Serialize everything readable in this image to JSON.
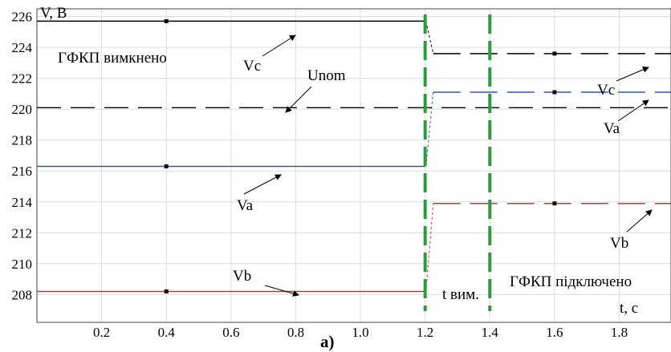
{
  "chart_data": {
    "type": "line",
    "caption": "а)",
    "xlabel": "t, c",
    "ylabel": "V, B",
    "xlim": [
      0,
      1.96
    ],
    "ylim": [
      206.2,
      226.5
    ],
    "xticks": [
      0.2,
      0.4,
      0.6,
      0.8,
      1.0,
      1.2,
      1.4,
      1.6,
      1.8
    ],
    "xtick_labels": [
      "0.2",
      "0.4",
      "0.6",
      "0.8",
      "1.0",
      "1.2",
      "1.4",
      "1.6",
      "1.8"
    ],
    "yticks": [
      208,
      210,
      212,
      214,
      216,
      218,
      220,
      222,
      224,
      226
    ],
    "ytick_labels": [
      "208",
      "210",
      "212",
      "214",
      "216",
      "218",
      "220",
      "222",
      "224",
      "226"
    ],
    "grid": true,
    "series": [
      {
        "name": "Vc",
        "color": "#000000",
        "style": "solid-then-dashed",
        "points": [
          [
            0,
            225.7
          ],
          [
            1.2,
            225.7
          ],
          [
            1.225,
            223.6
          ],
          [
            1.96,
            223.6
          ]
        ]
      },
      {
        "name": "Va",
        "color": "#3355bb",
        "style": "solid-then-dashed",
        "points": [
          [
            0,
            216.3
          ],
          [
            1.2,
            216.3
          ],
          [
            1.225,
            221.1
          ],
          [
            1.96,
            221.1
          ]
        ]
      },
      {
        "name": "Vb",
        "color": "#cc3333",
        "style": "solid-then-dashed",
        "points": [
          [
            0,
            208.2
          ],
          [
            1.2,
            208.2
          ],
          [
            1.225,
            213.9
          ],
          [
            1.96,
            213.9
          ]
        ]
      },
      {
        "name": "Unom",
        "color": "#000000",
        "style": "dashed",
        "points": [
          [
            0,
            220.1
          ],
          [
            1.96,
            220.1
          ]
        ]
      }
    ],
    "vlines": [
      {
        "x": 1.2,
        "color": "#2e9a3e"
      },
      {
        "x": 1.4,
        "color": "#2e9a3e"
      }
    ],
    "annotations": [
      {
        "text": "ГФКП вимкнено"
      },
      {
        "text": "Vc"
      },
      {
        "text": "Unom"
      },
      {
        "text": "Va"
      },
      {
        "text": "Vb"
      },
      {
        "text": "Vc"
      },
      {
        "text": "Va"
      },
      {
        "text": "Vb"
      },
      {
        "text": "t вим."
      },
      {
        "text": "ГФКП підключено"
      }
    ]
  }
}
